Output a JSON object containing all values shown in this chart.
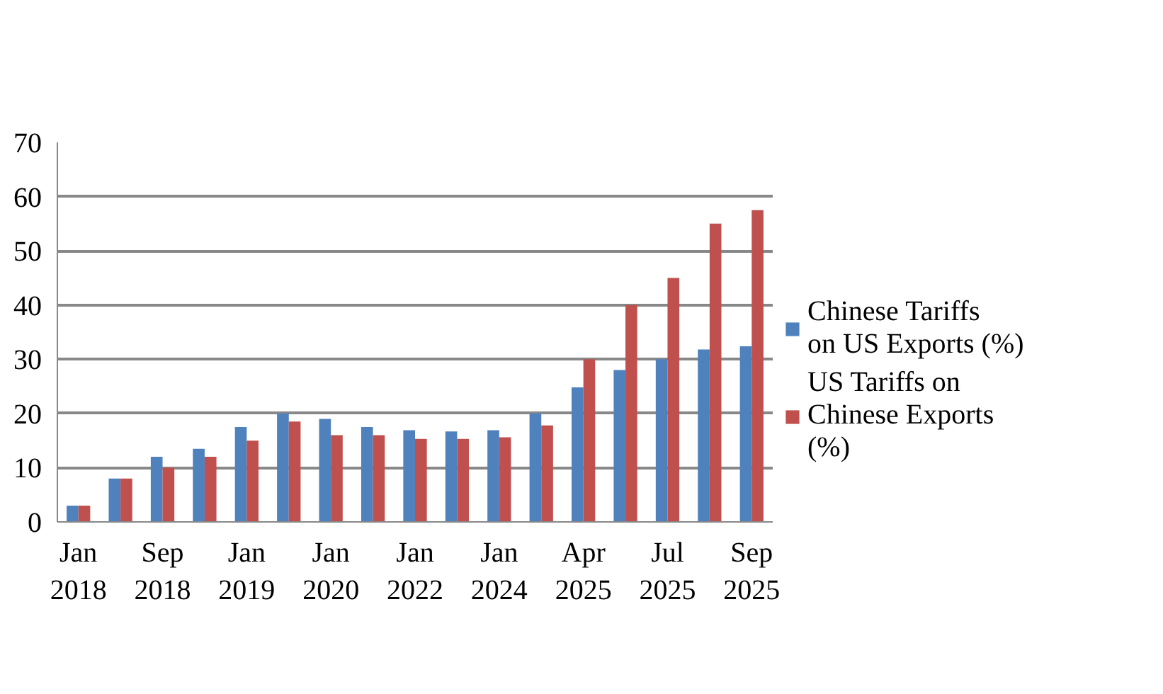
{
  "chart_data": {
    "type": "bar",
    "categories": [
      "Jan 2018",
      null,
      "Sep 2018",
      null,
      "Jan 2019",
      null,
      "Jan 2020",
      null,
      "Jan 2022",
      null,
      "Jan 2024",
      null,
      "Apr 2025",
      null,
      "Jul 2025",
      null,
      "Sep 2025"
    ],
    "series": [
      {
        "name": "Chinese Tariffs on US Exports (%)",
        "color": "#4f81bd",
        "values": [
          3,
          8,
          12,
          13.5,
          17.5,
          20,
          19,
          17.5,
          16.9,
          16.7,
          16.9,
          20,
          24.8,
          28,
          30,
          31.8,
          32.4
        ]
      },
      {
        "name": "US Tariffs on Chinese Exports (%)",
        "color": "#c0504d",
        "values": [
          3,
          8,
          10,
          12,
          15,
          18.5,
          16,
          16,
          15.3,
          15.3,
          15.6,
          17.8,
          30,
          40,
          45,
          55,
          57.5
        ]
      }
    ],
    "ylim": [
      0,
      70
    ],
    "yticks": [
      0,
      10,
      20,
      30,
      40,
      50,
      60,
      70
    ],
    "grid": "y",
    "legend": "right"
  }
}
